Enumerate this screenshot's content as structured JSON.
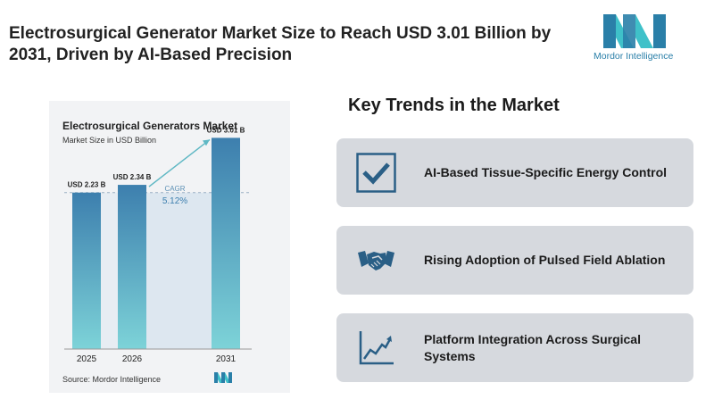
{
  "headline": "Electrosurgical Generator Market Size to Reach USD 3.01 Billion by 2031, Driven by AI-Based Precision",
  "brand": {
    "name": "Mordor Intelligence",
    "color": "#2a7fa8",
    "accent": "#3fc1c9"
  },
  "chart_data": {
    "type": "bar",
    "title": "Electrosurgical Generators Market",
    "subtitle": "Market Size in USD Billion",
    "categories": [
      "2025",
      "2026",
      "2031"
    ],
    "values": [
      2.23,
      2.34,
      3.01
    ],
    "data_labels": [
      "USD 2.23 B",
      "USD 2.34 B",
      "USD 3.01 B"
    ],
    "cagr_label": "CAGR",
    "cagr_value": "5.12%",
    "source": "Source: Mordor Intelligence",
    "bar_color_top": "#3d7fae",
    "bar_color_bottom": "#7dd3d8"
  },
  "trends": {
    "title": "Key Trends in the Market",
    "items": [
      {
        "label": "AI-Based Tissue-Specific Energy Control",
        "icon": "checkmark-icon"
      },
      {
        "label": "Rising Adoption of Pulsed Field Ablation",
        "icon": "handshake-icon"
      },
      {
        "label": "Platform Integration Across Surgical Systems",
        "icon": "growth-chart-icon"
      }
    ]
  }
}
